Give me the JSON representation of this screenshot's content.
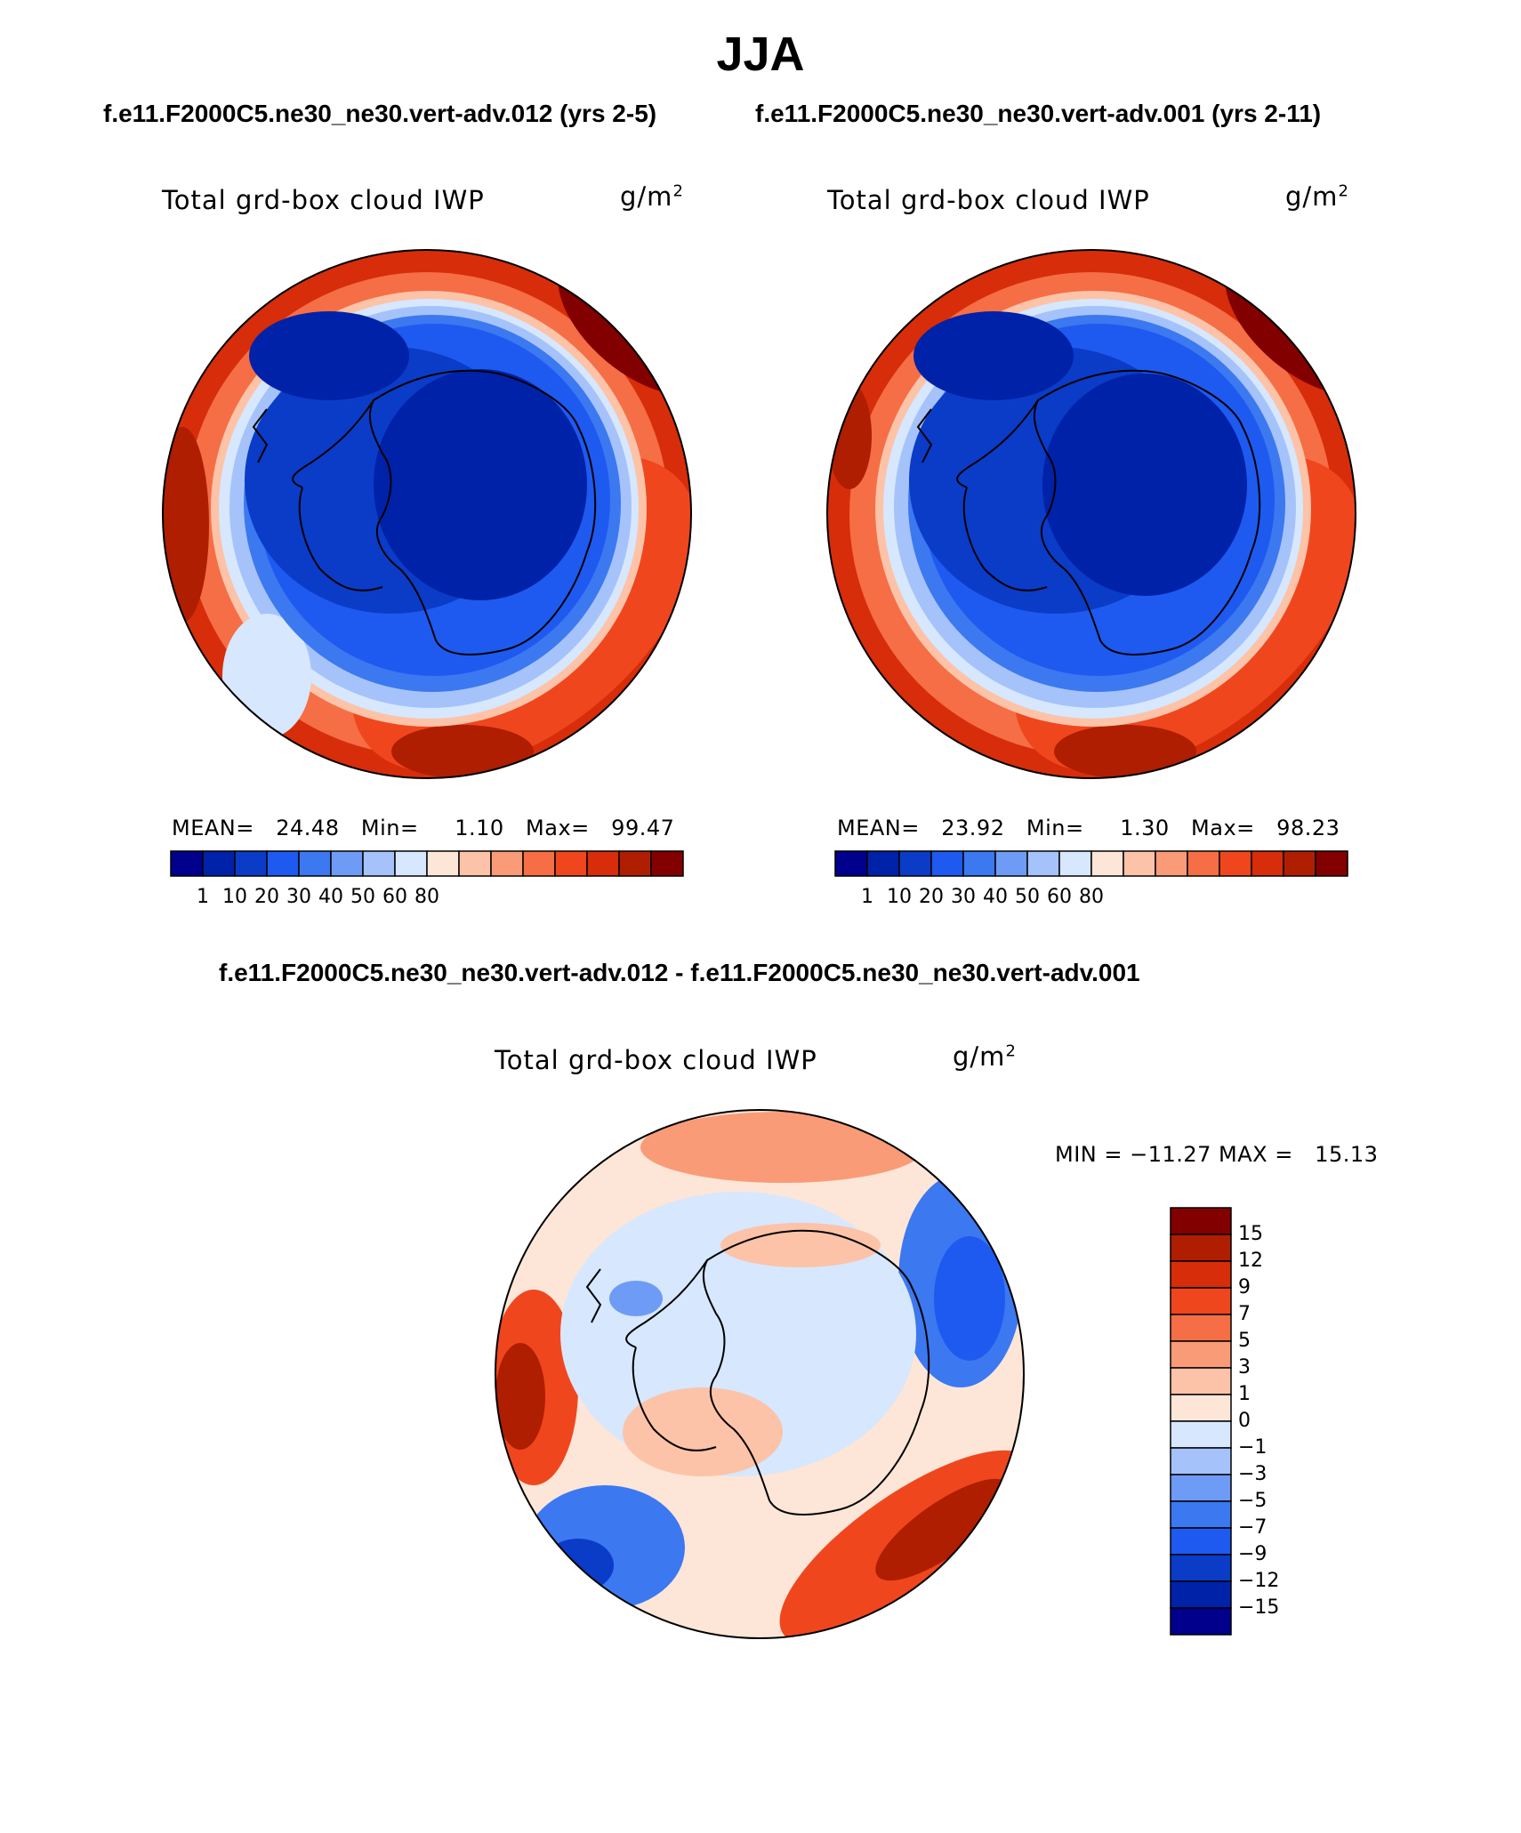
{
  "title": "JJA",
  "subtitles": {
    "case1": "f.e11.F2000C5.ne30_ne30.vert-adv.012 (yrs 2-5)",
    "case2": "f.e11.F2000C5.ne30_ne30.vert-adv.001 (yrs 2-11)",
    "diff": "f.e11.F2000C5.ne30_ne30.vert-adv.012 - f.e11.F2000C5.ne30_ne30.vert-adv.001"
  },
  "chart_data": [
    {
      "type": "heatmap",
      "projection": "south-polar-stereographic",
      "variable": "Total grd-box cloud IWP",
      "units": "g/m2",
      "stats": {
        "mean": "24.48",
        "min": "1.10",
        "max": "99.47"
      },
      "colorbar_ticks": [
        "1",
        "10",
        "20",
        "30",
        "40",
        "50",
        "60",
        "80"
      ],
      "colorbar_colors": [
        "#00008c",
        "#0022a8",
        "#0a3cc8",
        "#1e5af0",
        "#3c78f0",
        "#6e9bf5",
        "#a5c3fa",
        "#d7e7fd",
        "#fde6d7",
        "#fcc3a8",
        "#fa9b78",
        "#f56e46",
        "#f0461e",
        "#d72d0a",
        "#af1e00",
        "#820000"
      ]
    },
    {
      "type": "heatmap",
      "projection": "south-polar-stereographic",
      "variable": "Total grd-box cloud IWP",
      "units": "g/m2",
      "stats": {
        "mean": "23.92",
        "min": "1.30",
        "max": "98.23"
      },
      "colorbar_ticks": [
        "1",
        "10",
        "20",
        "30",
        "40",
        "50",
        "60",
        "80"
      ],
      "colorbar_colors": [
        "#00008c",
        "#0022a8",
        "#0a3cc8",
        "#1e5af0",
        "#3c78f0",
        "#6e9bf5",
        "#a5c3fa",
        "#d7e7fd",
        "#fde6d7",
        "#fcc3a8",
        "#fa9b78",
        "#f56e46",
        "#f0461e",
        "#d72d0a",
        "#af1e00",
        "#820000"
      ]
    },
    {
      "type": "heatmap",
      "projection": "south-polar-stereographic",
      "variable": "Total grd-box cloud IWP",
      "units": "g/m2",
      "stats_text": "MIN = −11.27 MAX =   15.13",
      "stats": {
        "min": "-11.27",
        "max": "15.13"
      },
      "colorbar_ticks": [
        "15",
        "12",
        "9",
        "7",
        "5",
        "3",
        "1",
        "0",
        "−1",
        "−3",
        "−5",
        "−7",
        "−9",
        "−12",
        "−15"
      ],
      "colorbar_colors": [
        "#820000",
        "#af1e00",
        "#d72d0a",
        "#f0461e",
        "#f56e46",
        "#fa9b78",
        "#fcc3a8",
        "#fde6d7",
        "#d7e7fd",
        "#a5c3fa",
        "#6e9bf5",
        "#3c78f0",
        "#1e5af0",
        "#0a3cc8",
        "#0022a8",
        "#00008c"
      ]
    }
  ],
  "labels": {
    "mean": "MEAN=",
    "min": "Min=",
    "max": "Max="
  },
  "units_display": {
    "base": "g/m",
    "exp": "2"
  }
}
